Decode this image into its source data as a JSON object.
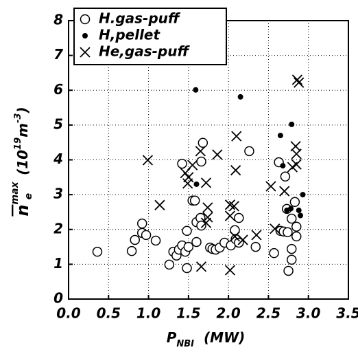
{
  "chart_data": {
    "type": "scatter",
    "x_label": {
      "symbol": "P",
      "subscript": "NBI",
      "unit": "(MW)"
    },
    "y_label": {
      "symbol": "n",
      "superscript": "max",
      "subscript": "e",
      "unit_open": "(10",
      "unit_power": "19",
      "unit_m": "m",
      "unit_m_power": "-3",
      "unit_close": ")"
    },
    "xlim": [
      0,
      3.5
    ],
    "ylim": [
      0,
      8
    ],
    "xticks": [
      {
        "value": 0,
        "label": "0.0"
      },
      0.5,
      {
        "value": 1,
        "label": "1.0"
      },
      1.5,
      {
        "value": 2,
        "label": "2.0"
      },
      2.5,
      {
        "value": 3,
        "label": "3.0"
      },
      3.5
    ],
    "yticks": [
      0,
      1,
      2,
      3,
      4,
      5,
      6,
      7,
      8
    ],
    "grid": true,
    "legend": "upper left",
    "series": [
      {
        "name": "H.gas-puff",
        "marker": "open-circle",
        "color": "#000000",
        "x": [
          0.36,
          0.79,
          0.83,
          0.92,
          0.92,
          0.97,
          1.09,
          1.26,
          1.31,
          1.35,
          1.38,
          1.42,
          1.42,
          1.46,
          1.48,
          1.48,
          1.5,
          1.55,
          1.58,
          1.6,
          1.6,
          1.65,
          1.66,
          1.66,
          1.68,
          1.77,
          1.8,
          1.84,
          1.89,
          1.95,
          2.03,
          2.08,
          2.09,
          2.13,
          2.13,
          2.26,
          2.34,
          2.57,
          2.63,
          2.65,
          2.69,
          2.71,
          2.73,
          2.74,
          2.75,
          2.79,
          2.79,
          2.79,
          2.83,
          2.85,
          2.85
        ],
        "values": [
          1.36,
          1.38,
          1.7,
          2.17,
          1.9,
          1.84,
          1.68,
          0.99,
          1.36,
          1.25,
          1.42,
          1.54,
          3.89,
          1.36,
          0.89,
          1.96,
          1.5,
          2.83,
          2.83,
          1.64,
          2.21,
          2.33,
          3.95,
          2.11,
          4.49,
          1.48,
          1.44,
          1.42,
          1.48,
          1.62,
          1.54,
          1.98,
          1.72,
          1.62,
          2.33,
          4.25,
          1.5,
          1.32,
          3.93,
          1.96,
          1.94,
          3.52,
          2.59,
          1.92,
          0.81,
          2.31,
          1.44,
          1.13,
          2.79,
          2.08,
          1.8
        ]
      },
      {
        "name": "H,pellet",
        "marker": "dot",
        "color": "#000000",
        "x": [
          1.59,
          2.15,
          1.6,
          2.65,
          2.68,
          2.79,
          2.93,
          2.73,
          2.78,
          2.88,
          2.9
        ],
        "values": [
          6.01,
          5.81,
          3.3,
          4.7,
          3.83,
          5.02,
          3.0,
          2.55,
          2.6,
          2.55,
          2.4
        ]
      },
      {
        "name": "He,gas-puff",
        "marker": "x",
        "color": "#000000",
        "x": [
          0.99,
          1.14,
          1.46,
          1.5,
          1.49,
          1.55,
          1.65,
          1.72,
          1.74,
          1.74,
          1.72,
          1.66,
          1.86,
          2.02,
          2.02,
          2.07,
          2.09,
          2.1,
          2.02,
          2.08,
          2.18,
          2.35,
          2.53,
          2.58,
          2.7,
          2.8,
          2.85,
          2.84,
          2.85,
          2.86,
          2.88
        ],
        "values": [
          3.99,
          2.7,
          3.62,
          3.5,
          3.32,
          3.85,
          4.25,
          3.34,
          2.63,
          2.35,
          2.19,
          0.93,
          4.15,
          2.39,
          2.71,
          2.67,
          3.7,
          4.68,
          0.83,
          1.8,
          1.7,
          1.84,
          3.24,
          2.02,
          3.1,
          3.79,
          3.87,
          4.39,
          4.17,
          6.3,
          6.22
        ]
      }
    ]
  }
}
